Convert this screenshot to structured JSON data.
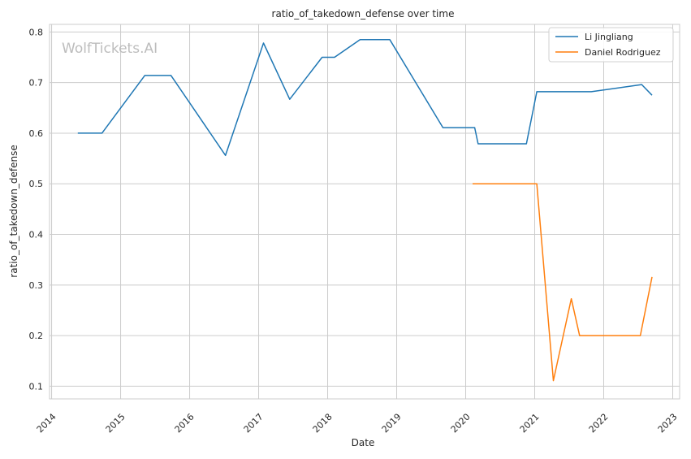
{
  "chart_data": {
    "type": "line",
    "title": "ratio_of_takedown_defense over time",
    "xlabel": "Date",
    "ylabel": "ratio_of_takedown_defense",
    "watermark": "WolfTickets.AI",
    "xlim": [
      2013.97,
      2023.1
    ],
    "ylim": [
      0.075,
      0.815
    ],
    "x_ticks": [
      2014,
      2015,
      2016,
      2017,
      2018,
      2019,
      2020,
      2021,
      2022,
      2023
    ],
    "x_tick_labels": [
      "2014",
      "2015",
      "2016",
      "2017",
      "2018",
      "2019",
      "2020",
      "2021",
      "2022",
      "2023"
    ],
    "y_ticks": [
      0.1,
      0.2,
      0.3,
      0.4,
      0.5,
      0.6,
      0.7,
      0.8
    ],
    "y_tick_labels": [
      "0.1",
      "0.2",
      "0.3",
      "0.4",
      "0.5",
      "0.6",
      "0.7",
      "0.8"
    ],
    "grid": true,
    "legend_position": "top-right",
    "series": [
      {
        "name": "Li Jingliang",
        "color": "#1f77b4",
        "x": [
          2014.38,
          2014.73,
          2015.35,
          2015.73,
          2016.52,
          2017.07,
          2017.45,
          2017.92,
          2018.1,
          2018.47,
          2018.9,
          2019.67,
          2020.13,
          2020.18,
          2020.88,
          2021.03,
          2021.82,
          2022.55,
          2022.7
        ],
        "y": [
          0.6,
          0.6,
          0.714,
          0.714,
          0.556,
          0.778,
          0.667,
          0.75,
          0.75,
          0.785,
          0.785,
          0.611,
          0.611,
          0.579,
          0.579,
          0.682,
          0.682,
          0.696,
          0.675
        ]
      },
      {
        "name": "Daniel Rodriguez",
        "color": "#ff7f0e",
        "x": [
          2020.1,
          2021.03,
          2021.27,
          2021.53,
          2021.65,
          2022.53,
          2022.7
        ],
        "y": [
          0.5,
          0.5,
          0.111,
          0.273,
          0.2,
          0.2,
          0.316
        ]
      }
    ]
  }
}
